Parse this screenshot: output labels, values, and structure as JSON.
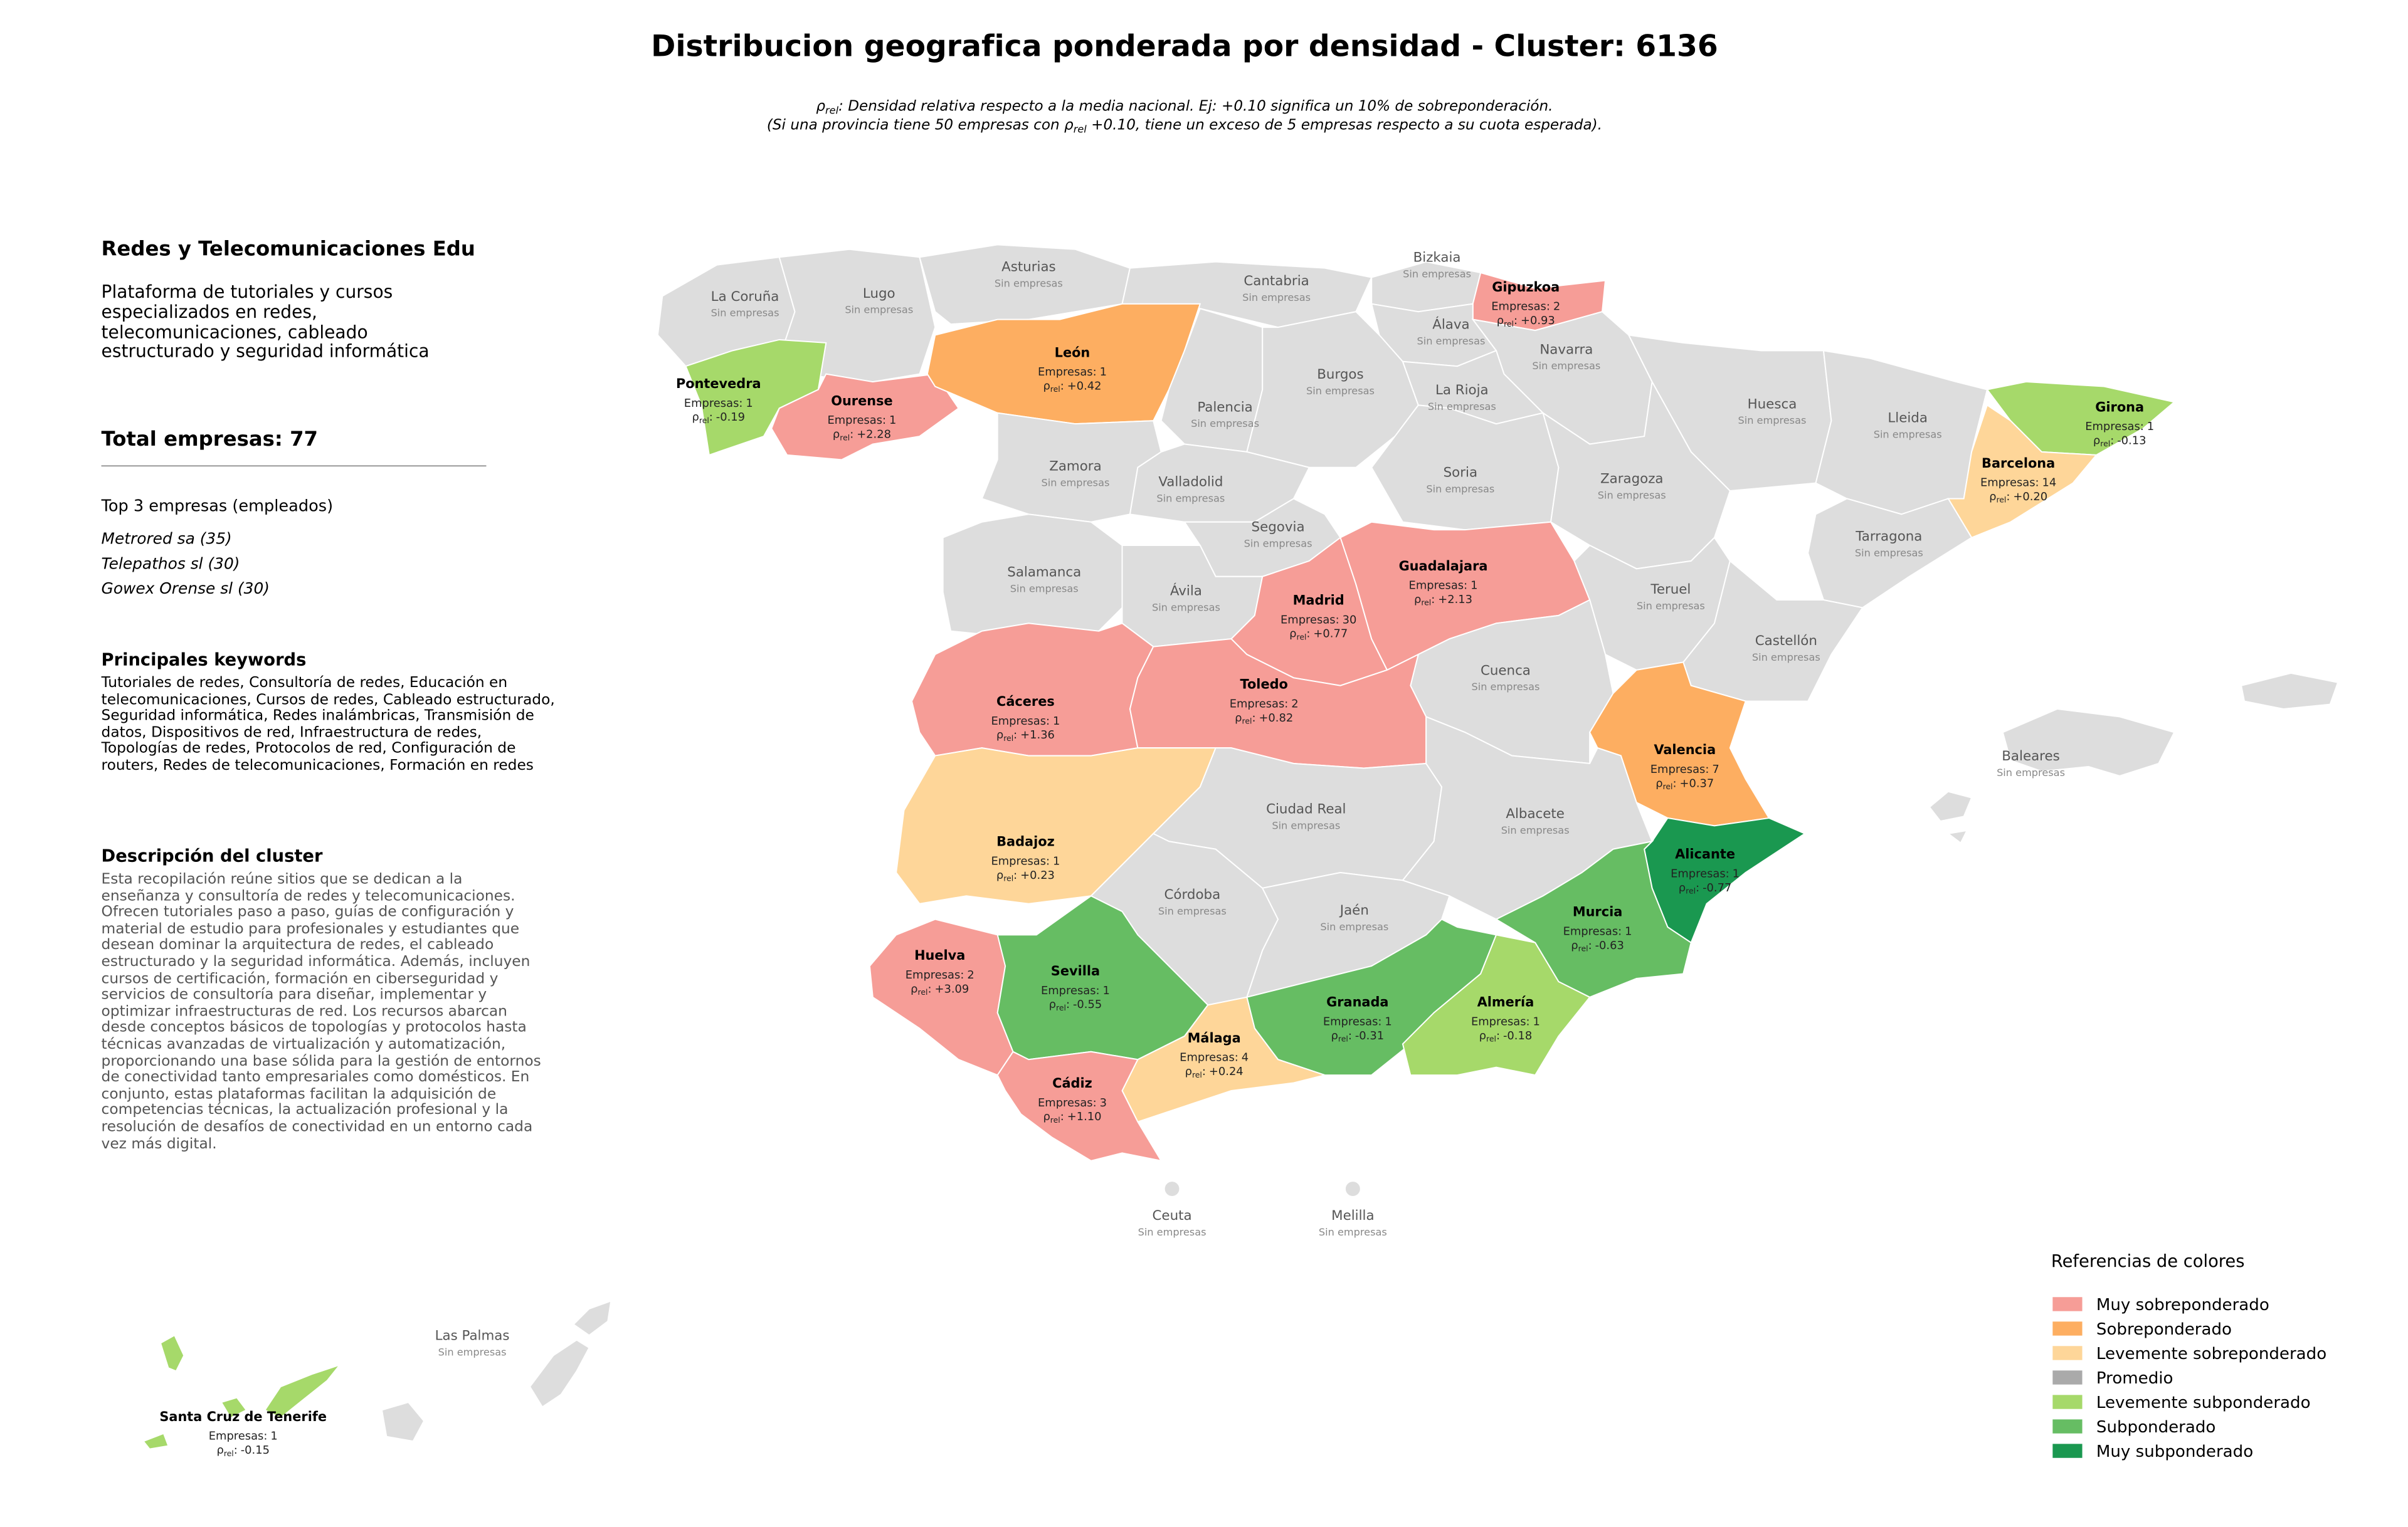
{
  "title": "Distribucion geografica ponderada por densidad - Cluster: 6136",
  "note": {
    "rho_symbol": "ρ",
    "rho_subscript": "rel",
    "separator": ":",
    "line1": " Densidad relativa respecto a la media nacional. Ej: +0.10 significa un 10% de sobreponderación.",
    "line2_before": "(Si una provincia tiene 50 empresas con ",
    "line2_after": " +0.10, tiene un exceso de 5 empresas respecto a su cuota esperada)."
  },
  "sidebar": {
    "title": "Redes y Telecomunicaciones Edu",
    "description": "Plataforma de tutoriales y cursos especializados en redes, telecomunicaciones, cableado estructurado y seguridad informática",
    "total": "Total empresas: 77",
    "top_heading": "Top 3 empresas (empleados)",
    "top_companies": [
      "Metrored sa (35)",
      "Telepathos sl (30)",
      "Gowex Orense sl (30)"
    ],
    "keywords_heading": "Principales keywords",
    "keywords": "Tutoriales de redes, Consultoría de redes, Educación en telecomunicaciones, Cursos de redes, Cableado estructurado, Seguridad informática, Redes inalámbricas, Transmisión de datos, Dispositivos de red, Infraestructura de redes, Topologías de redes, Protocolos de red, Configuración de routers, Redes de telecomunicaciones, Formación en redes",
    "cluster_heading": "Descripción del cluster",
    "cluster_description": "Esta recopilación reúne sitios que se dedican a la enseñanza y consultoría de redes y telecomunicaciones. Ofrecen tutoriales paso a paso, guías de configuración y material de estudio para profesionales y estudiantes que desean dominar la arquitectura de redes, el cableado estructurado y la seguridad informática. Además, incluyen cursos de certificación, formación en ciberseguridad y servicios de consultoría para diseñar, implementar y optimizar infraestructuras de red. Los recursos abarcan desde conceptos básicos de topologías y protocolos hasta técnicas avanzadas de virtualización y automatización, proporcionando una base sólida para la gestión de entornos de conectividad tanto empresariales como domésticos. En conjunto, estas plataformas facilitan la adquisición de competencias técnicas, la actualización profesional y la resolución de desafíos de conectividad en un entorno cada vez más digital."
  },
  "map": {
    "companies_label": "Empresas:",
    "empty_label": "Sin empresas",
    "provinces": [
      {
        "name": "La Coruña",
        "companies": null,
        "rho": null,
        "color": "#dddddd"
      },
      {
        "name": "Lugo",
        "companies": null,
        "rho": null,
        "color": "#dddddd"
      },
      {
        "name": "Pontevedra",
        "companies": 1,
        "rho": "-0.19",
        "color": "#a6d96a"
      },
      {
        "name": "Ourense",
        "companies": 1,
        "rho": "+2.28",
        "color": "#f69d97"
      },
      {
        "name": "Asturias",
        "companies": null,
        "rho": null,
        "color": "#dddddd"
      },
      {
        "name": "Cantabria",
        "companies": null,
        "rho": null,
        "color": "#dddddd"
      },
      {
        "name": "Bizkaia",
        "companies": null,
        "rho": null,
        "color": "#dddddd"
      },
      {
        "name": "Gipuzkoa",
        "companies": 2,
        "rho": "+0.93",
        "color": "#f69d97"
      },
      {
        "name": "Álava",
        "companies": null,
        "rho": null,
        "color": "#dddddd"
      },
      {
        "name": "Navarra",
        "companies": null,
        "rho": null,
        "color": "#dddddd"
      },
      {
        "name": "León",
        "companies": 1,
        "rho": "+0.42",
        "color": "#fdae61"
      },
      {
        "name": "Palencia",
        "companies": null,
        "rho": null,
        "color": "#dddddd"
      },
      {
        "name": "Burgos",
        "companies": null,
        "rho": null,
        "color": "#dddddd"
      },
      {
        "name": "La Rioja",
        "companies": null,
        "rho": null,
        "color": "#dddddd"
      },
      {
        "name": "Zamora",
        "companies": null,
        "rho": null,
        "color": "#dddddd"
      },
      {
        "name": "Valladolid",
        "companies": null,
        "rho": null,
        "color": "#dddddd"
      },
      {
        "name": "Soria",
        "companies": null,
        "rho": null,
        "color": "#dddddd"
      },
      {
        "name": "Huesca",
        "companies": null,
        "rho": null,
        "color": "#dddddd"
      },
      {
        "name": "Lleida",
        "companies": null,
        "rho": null,
        "color": "#dddddd"
      },
      {
        "name": "Girona",
        "companies": 1,
        "rho": "-0.13",
        "color": "#a6d96a"
      },
      {
        "name": "Barcelona",
        "companies": 14,
        "rho": "+0.20",
        "color": "#fed699"
      },
      {
        "name": "Zaragoza",
        "companies": null,
        "rho": null,
        "color": "#dddddd"
      },
      {
        "name": "Tarragona",
        "companies": null,
        "rho": null,
        "color": "#dddddd"
      },
      {
        "name": "Segovia",
        "companies": null,
        "rho": null,
        "color": "#dddddd"
      },
      {
        "name": "Salamanca",
        "companies": null,
        "rho": null,
        "color": "#dddddd"
      },
      {
        "name": "Ávila",
        "companies": null,
        "rho": null,
        "color": "#dddddd"
      },
      {
        "name": "Madrid",
        "companies": 30,
        "rho": "+0.77",
        "color": "#f69d97"
      },
      {
        "name": "Guadalajara",
        "companies": 1,
        "rho": "+2.13",
        "color": "#f69d97"
      },
      {
        "name": "Teruel",
        "companies": null,
        "rho": null,
        "color": "#dddddd"
      },
      {
        "name": "Castellón",
        "companies": null,
        "rho": null,
        "color": "#dddddd"
      },
      {
        "name": "Cuenca",
        "companies": null,
        "rho": null,
        "color": "#dddddd"
      },
      {
        "name": "Cáceres",
        "companies": 1,
        "rho": "+1.36",
        "color": "#f69d97"
      },
      {
        "name": "Toledo",
        "companies": 2,
        "rho": "+0.82",
        "color": "#f69d97"
      },
      {
        "name": "Valencia",
        "companies": 7,
        "rho": "+0.37",
        "color": "#fdae61"
      },
      {
        "name": "Badajoz",
        "companies": 1,
        "rho": "+0.23",
        "color": "#fed699"
      },
      {
        "name": "Ciudad Real",
        "companies": null,
        "rho": null,
        "color": "#dddddd"
      },
      {
        "name": "Albacete",
        "companies": null,
        "rho": null,
        "color": "#dddddd"
      },
      {
        "name": "Alicante",
        "companies": 1,
        "rho": "-0.77",
        "color": "#1a9850"
      },
      {
        "name": "Murcia",
        "companies": 1,
        "rho": "-0.63",
        "color": "#66bd63"
      },
      {
        "name": "Córdoba",
        "companies": null,
        "rho": null,
        "color": "#dddddd"
      },
      {
        "name": "Jaén",
        "companies": null,
        "rho": null,
        "color": "#dddddd"
      },
      {
        "name": "Huelva",
        "companies": 2,
        "rho": "+3.09",
        "color": "#f69d97"
      },
      {
        "name": "Sevilla",
        "companies": 1,
        "rho": "-0.55",
        "color": "#66bd63"
      },
      {
        "name": "Granada",
        "companies": 1,
        "rho": "-0.31",
        "color": "#66bd63"
      },
      {
        "name": "Almería",
        "companies": 1,
        "rho": "-0.18",
        "color": "#a6d96a"
      },
      {
        "name": "Málaga",
        "companies": 4,
        "rho": "+0.24",
        "color": "#fed699"
      },
      {
        "name": "Cádiz",
        "companies": 3,
        "rho": "+1.10",
        "color": "#f69d97"
      },
      {
        "name": "Baleares",
        "companies": null,
        "rho": null,
        "color": "#dddddd"
      },
      {
        "name": "Las Palmas",
        "companies": null,
        "rho": null,
        "color": "#dddddd"
      },
      {
        "name": "Santa Cruz de Tenerife",
        "companies": 1,
        "rho": "-0.15",
        "color": "#a6d96a"
      },
      {
        "name": "Ceuta",
        "companies": null,
        "rho": null,
        "color": "#dddddd"
      },
      {
        "name": "Melilla",
        "companies": null,
        "rho": null,
        "color": "#dddddd"
      }
    ]
  },
  "legend": {
    "title": "Referencias de colores",
    "items": [
      {
        "label": "Muy sobreponderado",
        "color": "#f69d97"
      },
      {
        "label": "Sobreponderado",
        "color": "#fdae61"
      },
      {
        "label": "Levemente sobreponderado",
        "color": "#fed699"
      },
      {
        "label": "Promedio",
        "color": "#aaaaaa"
      },
      {
        "label": "Levemente subponderado",
        "color": "#a6d96a"
      },
      {
        "label": "Subponderado",
        "color": "#66bd63"
      },
      {
        "label": "Muy subponderado",
        "color": "#1a9850"
      }
    ]
  }
}
